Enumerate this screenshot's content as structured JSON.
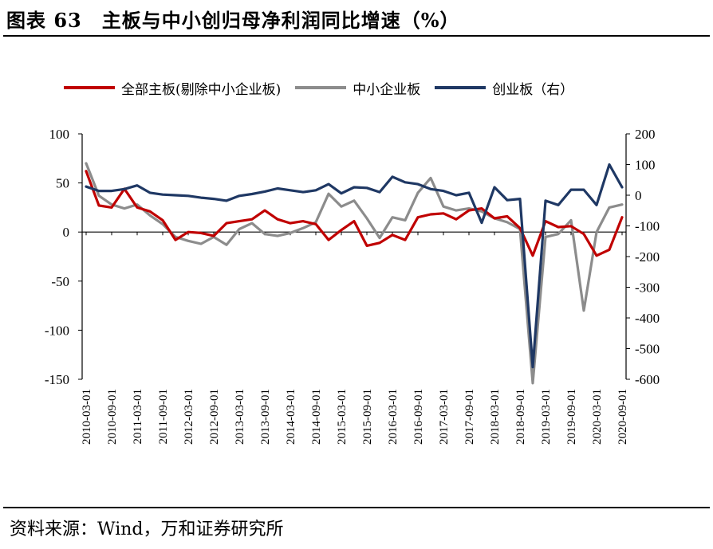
{
  "header": {
    "title": "图表 63　主板与中小创归母净利润同比增速（%）"
  },
  "footer": {
    "source": "资料来源：Wind，万和证券研究所"
  },
  "legend": {
    "placement": "top"
  },
  "chart_data": {
    "type": "line",
    "title": "主板与中小创归母净利润同比增速（%）",
    "x": [
      "2010-03-01",
      "2010-06-01",
      "2010-09-01",
      "2010-12-01",
      "2011-03-01",
      "2011-06-01",
      "2011-09-01",
      "2011-12-01",
      "2012-03-01",
      "2012-06-01",
      "2012-09-01",
      "2012-12-01",
      "2013-03-01",
      "2013-06-01",
      "2013-09-01",
      "2013-12-01",
      "2014-03-01",
      "2014-06-01",
      "2014-09-01",
      "2014-12-01",
      "2015-03-01",
      "2015-06-01",
      "2015-09-01",
      "2015-12-01",
      "2016-03-01",
      "2016-06-01",
      "2016-09-01",
      "2016-12-01",
      "2017-03-01",
      "2017-06-01",
      "2017-09-01",
      "2017-12-01",
      "2018-03-01",
      "2018-06-01",
      "2018-09-01",
      "2018-12-01",
      "2019-03-01",
      "2019-06-01",
      "2019-09-01",
      "2019-12-01",
      "2020-03-01",
      "2020-06-01",
      "2020-09-01"
    ],
    "x_tick_labels": [
      "2010-03-01",
      "2010-09-01",
      "2011-03-01",
      "2011-09-01",
      "2012-03-01",
      "2012-09-01",
      "2013-03-01",
      "2013-09-01",
      "2014-03-01",
      "2014-09-01",
      "2015-03-01",
      "2015-09-01",
      "2016-03-01",
      "2016-09-01",
      "2017-03-01",
      "2017-09-01",
      "2018-03-01",
      "2018-09-01",
      "2019-03-01",
      "2019-09-01",
      "2020-03-01",
      "2020-09-01"
    ],
    "ylim_left": [
      -150,
      100
    ],
    "yticks_left": [
      100,
      50,
      0,
      -50,
      -100,
      -150
    ],
    "ylim_right": [
      -600,
      200
    ],
    "yticks_right": [
      200,
      100,
      0,
      -100,
      -200,
      -300,
      -400,
      -500,
      -600
    ],
    "grid": false,
    "series": [
      {
        "name": "全部主板(剔除中小企业板)",
        "axis": "left",
        "color": "#c00000",
        "values": [
          62,
          27,
          25,
          44,
          25,
          21,
          12,
          -8,
          0,
          -1,
          -4,
          9,
          11,
          13,
          22,
          13,
          9,
          11,
          8,
          -8,
          2,
          11,
          -14,
          -11,
          -3,
          -8,
          15,
          18,
          19,
          13,
          22,
          24,
          14,
          16,
          4,
          -24,
          11,
          5,
          6,
          -2,
          -24,
          -18,
          15
        ]
      },
      {
        "name": "中小企业板",
        "axis": "left",
        "color": "#8c8c8c",
        "values": [
          70,
          37,
          28,
          24,
          28,
          17,
          8,
          -5,
          -9,
          -12,
          -5,
          -13,
          3,
          9,
          -2,
          -4,
          -1,
          4,
          10,
          39,
          26,
          32,
          14,
          -6,
          15,
          12,
          40,
          55,
          26,
          22,
          24,
          21,
          14,
          10,
          3,
          -154,
          -5,
          -2,
          12,
          -80,
          0,
          25,
          28
        ]
      },
      {
        "name": "创业板（右）",
        "axis": "right",
        "color": "#1f3864",
        "values": [
          28,
          14,
          14,
          20,
          32,
          8,
          2,
          0,
          -2,
          -8,
          -12,
          -18,
          -2,
          4,
          12,
          22,
          16,
          10,
          16,
          36,
          6,
          26,
          24,
          10,
          60,
          42,
          36,
          20,
          14,
          0,
          8,
          -90,
          26,
          -16,
          -12,
          -560,
          -18,
          -32,
          18,
          18,
          -32,
          100,
          26
        ]
      }
    ]
  }
}
